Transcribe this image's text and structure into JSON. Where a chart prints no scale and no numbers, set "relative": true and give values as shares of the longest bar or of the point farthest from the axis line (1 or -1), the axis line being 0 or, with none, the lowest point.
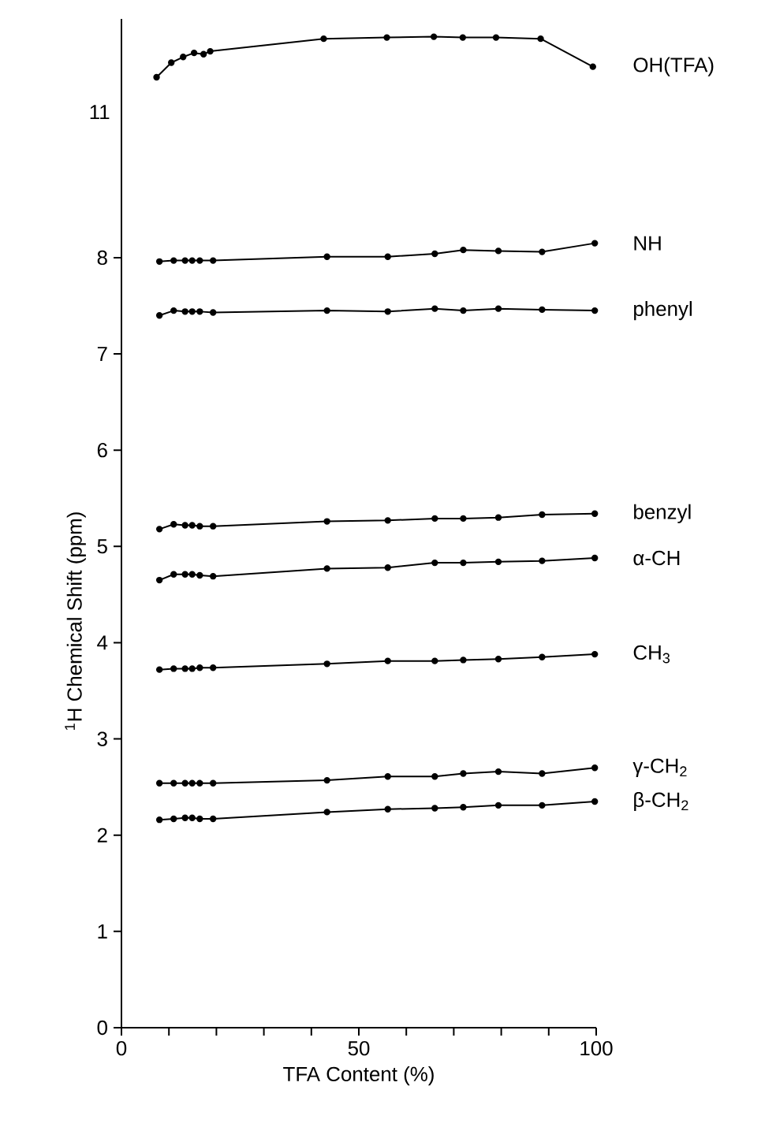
{
  "chart_data": [
    {
      "type": "line",
      "x": [
        7.4,
        10.5,
        13,
        15.3,
        17.3,
        18.7,
        42.6,
        55.9,
        65.8,
        71.9,
        78.9,
        88.3,
        99.3
      ],
      "xlim": [
        0,
        100
      ],
      "relative": true,
      "annotations": [
        "11"
      ],
      "tick_labels": false,
      "marker": "circle",
      "line_style": "solid",
      "legend": false,
      "series": [
        {
          "name": "OH(TFA)",
          "color": "#000000",
          "values": [
            0,
            0.36,
            0.5,
            0.6,
            0.57,
            0.64,
            0.95,
            0.98,
            1,
            0.98,
            0.98,
            0.95,
            0.26
          ]
        }
      ]
    },
    {
      "type": "line",
      "x": [
        8,
        11,
        13.4,
        14.9,
        16.5,
        19.3,
        43.3,
        56.1,
        66,
        72,
        79.4,
        88.6,
        99.7
      ],
      "xlim": [
        0,
        100
      ],
      "ylim": [
        0,
        8.45
      ],
      "xlabel": "TFA Content (%)",
      "ylabel": "$^{1}$H Chemical Shift (ppm)",
      "xticks": [
        0,
        {
          "value": 10,
          "label": null
        },
        {
          "value": 20,
          "label": null
        },
        {
          "value": 30,
          "label": null
        },
        {
          "value": 40,
          "label": null
        },
        50,
        {
          "value": 60,
          "label": null
        },
        {
          "value": 70,
          "label": null
        },
        {
          "value": 80,
          "label": null
        },
        {
          "value": 90,
          "label": null
        },
        100
      ],
      "yticks": [
        0,
        1,
        2,
        3,
        4,
        5,
        6,
        7,
        8
      ],
      "marker": "circle",
      "line_style": "solid",
      "legend": false,
      "series": [
        {
          "name": "NH",
          "color": "#000000",
          "values": [
            7.96,
            7.97,
            7.97,
            7.97,
            7.97,
            7.97,
            8.01,
            8.01,
            8.04,
            8.08,
            8.07,
            8.06,
            8.15
          ]
        },
        {
          "name": "phenyl",
          "color": "#000000",
          "values": [
            7.4,
            7.45,
            7.44,
            7.44,
            7.44,
            7.43,
            7.45,
            7.44,
            7.47,
            7.45,
            7.47,
            7.46,
            7.45
          ]
        },
        {
          "name": "benzyl",
          "color": "#000000",
          "values": [
            5.18,
            5.23,
            5.22,
            5.22,
            5.21,
            5.21,
            5.26,
            5.27,
            5.29,
            5.29,
            5.3,
            5.33,
            5.34
          ]
        },
        {
          "name": "α-CH",
          "color": "#000000",
          "values": [
            4.65,
            4.71,
            4.71,
            4.71,
            4.7,
            4.69,
            4.77,
            4.78,
            4.83,
            4.83,
            4.84,
            4.85,
            4.88
          ]
        },
        {
          "name": "CH$_{3}$",
          "color": "#000000",
          "values": [
            3.72,
            3.73,
            3.73,
            3.73,
            3.74,
            3.74,
            3.78,
            3.81,
            3.81,
            3.82,
            3.83,
            3.85,
            3.88
          ]
        },
        {
          "name": "γ-CH$_{2}$",
          "color": "#000000",
          "values": [
            2.54,
            2.54,
            2.54,
            2.54,
            2.54,
            2.54,
            2.57,
            2.61,
            2.61,
            2.64,
            2.66,
            2.64,
            2.7
          ]
        },
        {
          "name": "β-CH$_{2}$",
          "color": "#000000",
          "values": [
            2.16,
            2.17,
            2.18,
            2.18,
            2.17,
            2.17,
            2.24,
            2.27,
            2.28,
            2.29,
            2.31,
            2.31,
            2.35
          ]
        }
      ]
    }
  ]
}
